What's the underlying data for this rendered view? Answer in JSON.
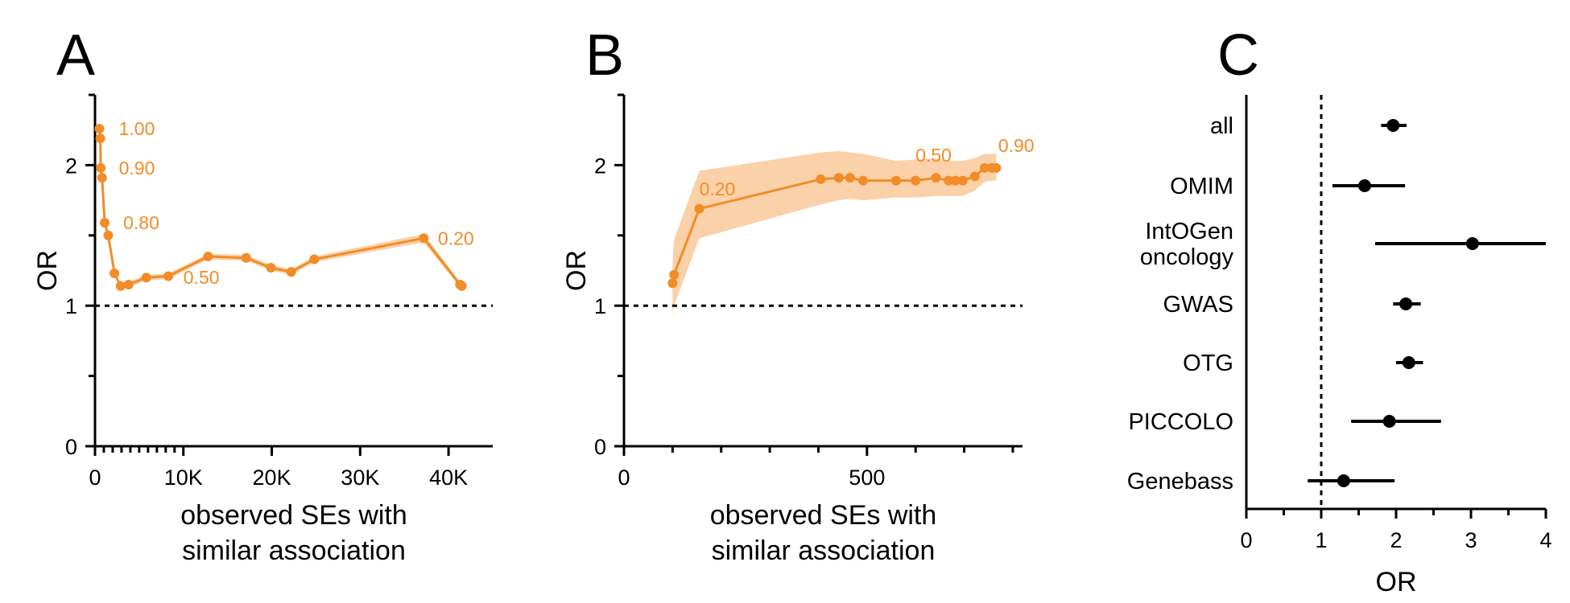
{
  "colors": {
    "accent": "#F28C28",
    "band": "#F9C999",
    "ink": "#000000"
  },
  "panels": {
    "a": "A",
    "b": "B",
    "c": "C"
  },
  "chart_data": [
    {
      "panel": "A",
      "type": "line",
      "ylabel": "OR",
      "xlabel_lines": [
        "observed SEs with",
        "similar association"
      ],
      "xlim": [
        0,
        45000
      ],
      "ylim": [
        0,
        2.5
      ],
      "xticks": [
        {
          "v": 0,
          "label": "0"
        },
        {
          "v": 10000,
          "label": "10K"
        },
        {
          "v": 20000,
          "label": "20K"
        },
        {
          "v": 30000,
          "label": "30K"
        },
        {
          "v": 40000,
          "label": "40K"
        }
      ],
      "xminor": [
        1000,
        2000,
        3000,
        4000,
        5000,
        6000,
        7000,
        8000,
        9000
      ],
      "yticks": [
        {
          "v": 0,
          "label": "0"
        },
        {
          "v": 1,
          "label": "1"
        },
        {
          "v": 2,
          "label": "2"
        }
      ],
      "yminor": [
        0.5,
        1.5
      ],
      "reference_line": 1,
      "series": [
        {
          "x": [
            500,
            600,
            650,
            800,
            1100,
            1500,
            2200,
            2900,
            3800,
            5800,
            8300,
            12800,
            17100,
            19900,
            22200,
            24800,
            37200,
            41300,
            41500
          ],
          "y": [
            2.26,
            2.19,
            1.98,
            1.91,
            1.59,
            1.5,
            1.23,
            1.14,
            1.15,
            1.2,
            1.21,
            1.35,
            1.34,
            1.27,
            1.24,
            1.33,
            1.48,
            1.15,
            1.14
          ],
          "lower": [
            2.24,
            2.17,
            1.96,
            1.89,
            1.57,
            1.48,
            1.21,
            1.12,
            1.13,
            1.18,
            1.19,
            1.33,
            1.32,
            1.25,
            1.22,
            1.31,
            1.45,
            1.13,
            1.12
          ],
          "upper": [
            2.28,
            2.21,
            2.0,
            1.93,
            1.61,
            1.52,
            1.25,
            1.16,
            1.17,
            1.22,
            1.23,
            1.37,
            1.36,
            1.29,
            1.26,
            1.35,
            1.51,
            1.17,
            1.16
          ]
        }
      ],
      "annotations": [
        {
          "text": "1.00",
          "x": 2700,
          "y": 2.26
        },
        {
          "text": "0.90",
          "x": 2700,
          "y": 1.98
        },
        {
          "text": "0.80",
          "x": 3200,
          "y": 1.59
        },
        {
          "text": "0.50",
          "x": 10000,
          "y": 1.2
        },
        {
          "text": "0.20",
          "x": 38800,
          "y": 1.48
        }
      ]
    },
    {
      "panel": "B",
      "type": "line",
      "ylabel": "OR",
      "xlabel_lines": [
        "observed SEs with",
        "similar association"
      ],
      "xlim": [
        0,
        820
      ],
      "ylim": [
        0,
        2.5
      ],
      "xticks": [
        {
          "v": 0,
          "label": "0"
        },
        {
          "v": 500,
          "label": "500"
        }
      ],
      "xminor": [
        100,
        200,
        300,
        400,
        600,
        700,
        800
      ],
      "yticks": [
        {
          "v": 0,
          "label": "0"
        },
        {
          "v": 1,
          "label": "1"
        },
        {
          "v": 2,
          "label": "2"
        }
      ],
      "yminor": [
        0.5,
        1.5
      ],
      "reference_line": 1,
      "series": [
        {
          "x": [
            100,
            103,
            155,
            405,
            442,
            465,
            492,
            560,
            600,
            642,
            668,
            682,
            697,
            722,
            742,
            757,
            766
          ],
          "y": [
            1.16,
            1.22,
            1.69,
            1.9,
            1.91,
            1.91,
            1.89,
            1.89,
            1.89,
            1.91,
            1.89,
            1.89,
            1.89,
            1.92,
            1.98,
            1.98,
            1.98
          ],
          "lower": [
            0.93,
            1.0,
            1.48,
            1.72,
            1.75,
            1.76,
            1.75,
            1.77,
            1.77,
            1.78,
            1.78,
            1.78,
            1.78,
            1.82,
            1.88,
            1.89,
            1.89
          ],
          "upper": [
            1.3,
            1.47,
            1.96,
            2.09,
            2.1,
            2.09,
            2.08,
            2.03,
            2.04,
            2.05,
            2.03,
            2.03,
            2.03,
            2.05,
            2.08,
            2.08,
            2.08
          ]
        }
      ],
      "annotations": [
        {
          "text": "0.20",
          "x": 155,
          "y": 1.83
        },
        {
          "text": "0.50",
          "x": 600,
          "y": 2.07
        },
        {
          "text": "0.90",
          "x": 770,
          "y": 2.14
        }
      ]
    },
    {
      "panel": "C",
      "type": "scatter",
      "xlabel": "OR",
      "xlim": [
        0,
        4
      ],
      "xticks": [
        {
          "v": 0,
          "label": "0"
        },
        {
          "v": 1,
          "label": "1"
        },
        {
          "v": 2,
          "label": "2"
        },
        {
          "v": 3,
          "label": "3"
        },
        {
          "v": 4,
          "label": "4"
        }
      ],
      "xminor": [
        0.5,
        1.5,
        2.5,
        3.5
      ],
      "reference_line": 1,
      "categories": [
        {
          "lines": [
            "all"
          ],
          "or": 1.96,
          "lo": 1.8,
          "hi": 2.14
        },
        {
          "lines": [
            "OMIM"
          ],
          "or": 1.58,
          "lo": 1.15,
          "hi": 2.12
        },
        {
          "lines": [
            "IntOGen",
            "oncology"
          ],
          "or": 3.02,
          "lo": 1.72,
          "hi": 4.0
        },
        {
          "lines": [
            "GWAS"
          ],
          "or": 2.13,
          "lo": 1.96,
          "hi": 2.33
        },
        {
          "lines": [
            "OTG"
          ],
          "or": 2.17,
          "lo": 2.0,
          "hi": 2.36
        },
        {
          "lines": [
            "PICCOLO"
          ],
          "or": 1.91,
          "lo": 1.4,
          "hi": 2.6
        },
        {
          "lines": [
            "Genebass"
          ],
          "or": 1.3,
          "lo": 0.82,
          "hi": 1.98
        }
      ]
    }
  ]
}
